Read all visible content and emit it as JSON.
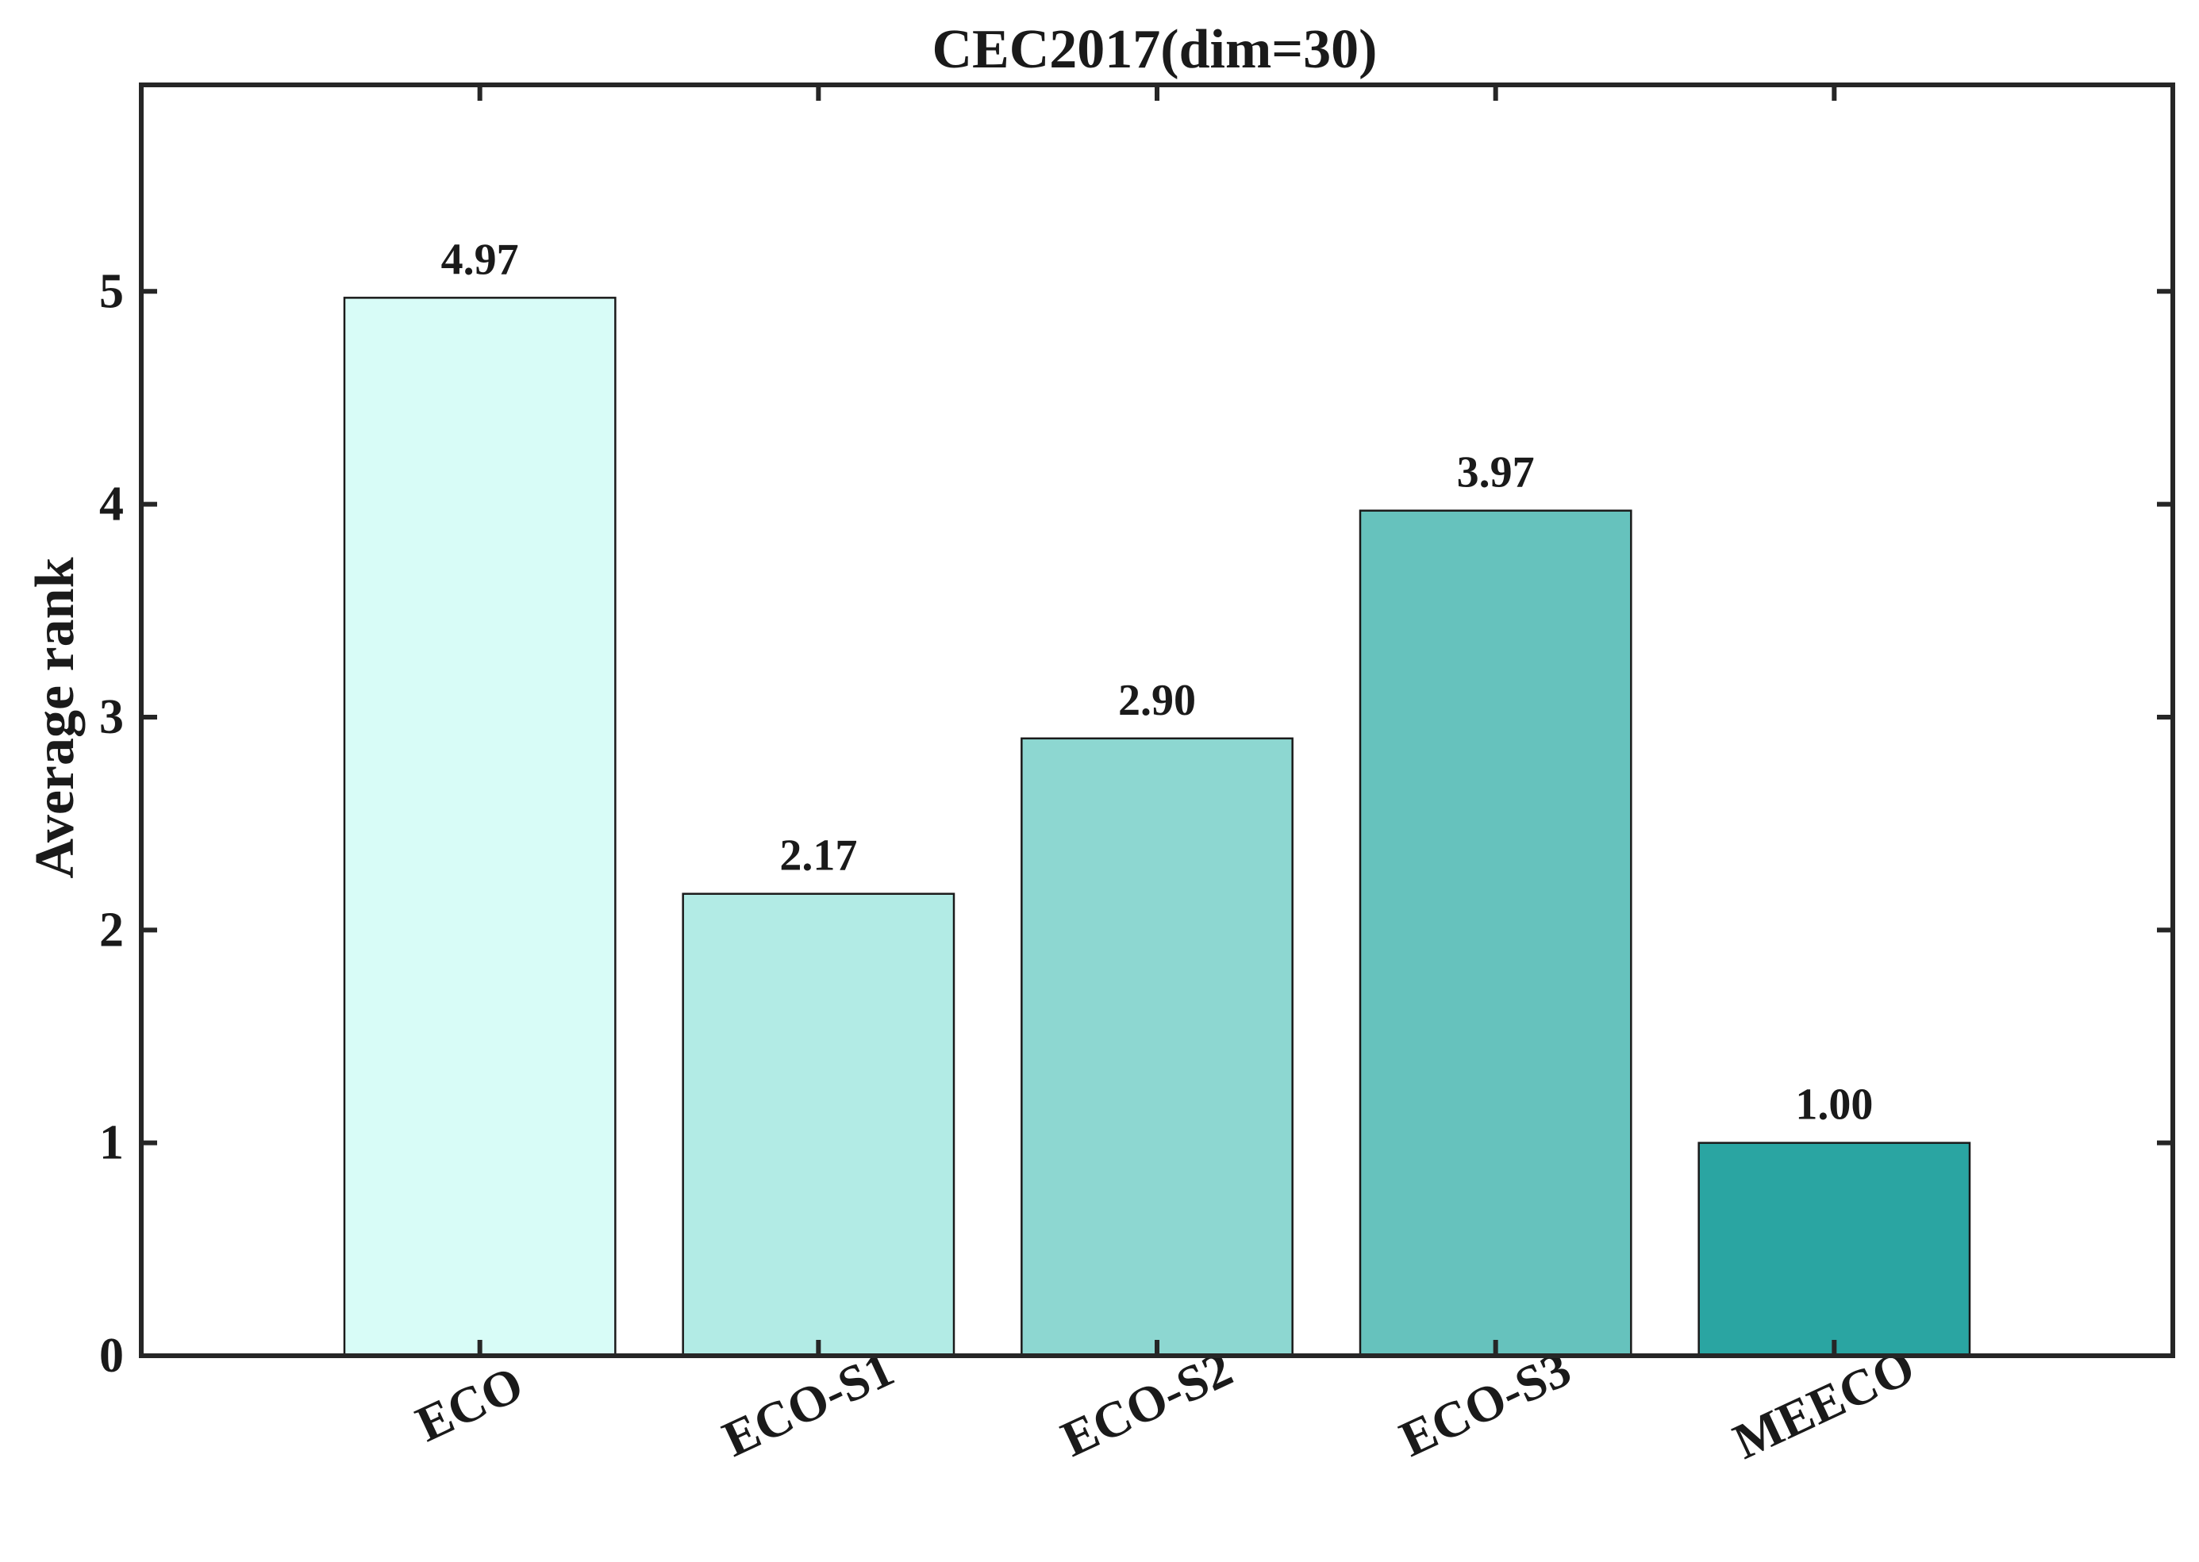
{
  "chart_data": {
    "type": "bar",
    "title": "CEC2017(dim=30)",
    "xlabel": "",
    "ylabel": "Average rank",
    "categories": [
      "ECO",
      "ECO-S1",
      "ECO-S2",
      "ECO-S3",
      "MEECO"
    ],
    "values": [
      4.97,
      2.17,
      2.9,
      3.97,
      1.0
    ],
    "value_labels": [
      "4.97",
      "2.17",
      "2.90",
      "3.97",
      "1.00"
    ],
    "ylim": [
      0,
      5.97
    ],
    "xlim": [
      0,
      6
    ],
    "yticks": [
      0,
      1,
      2,
      3,
      4,
      5
    ],
    "ytick_labels": [
      "0",
      "1",
      "2",
      "3",
      "4",
      "5"
    ],
    "grid": false,
    "legend": "none",
    "colors": [
      "#d8fcf7",
      "#b2ebe5",
      "#8dd7d1",
      "#66c2bd",
      "#2aa5a2"
    ],
    "tick_label_rotation_deg": -25
  }
}
